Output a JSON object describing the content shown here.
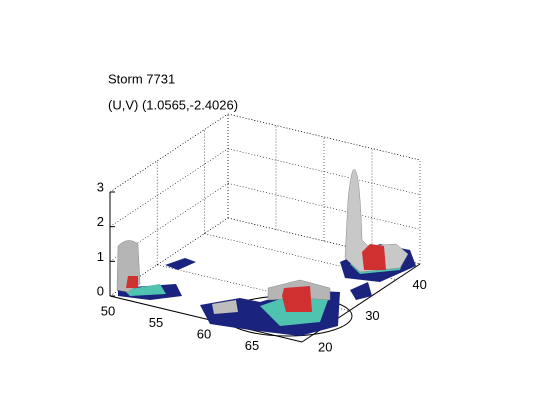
{
  "chart_data": {
    "type": "surface3d",
    "title": "Storm 7731",
    "subtitle": "(U,V) (1.0565,-2.4026)",
    "xlim": [
      50,
      70
    ],
    "xticks": [
      50,
      55,
      60,
      65
    ],
    "ylim": [
      20,
      45
    ],
    "yticks": [
      20,
      30,
      40
    ],
    "zlim": [
      0,
      3
    ],
    "zticks": [
      0,
      1,
      2,
      3
    ],
    "grid": true
  }
}
